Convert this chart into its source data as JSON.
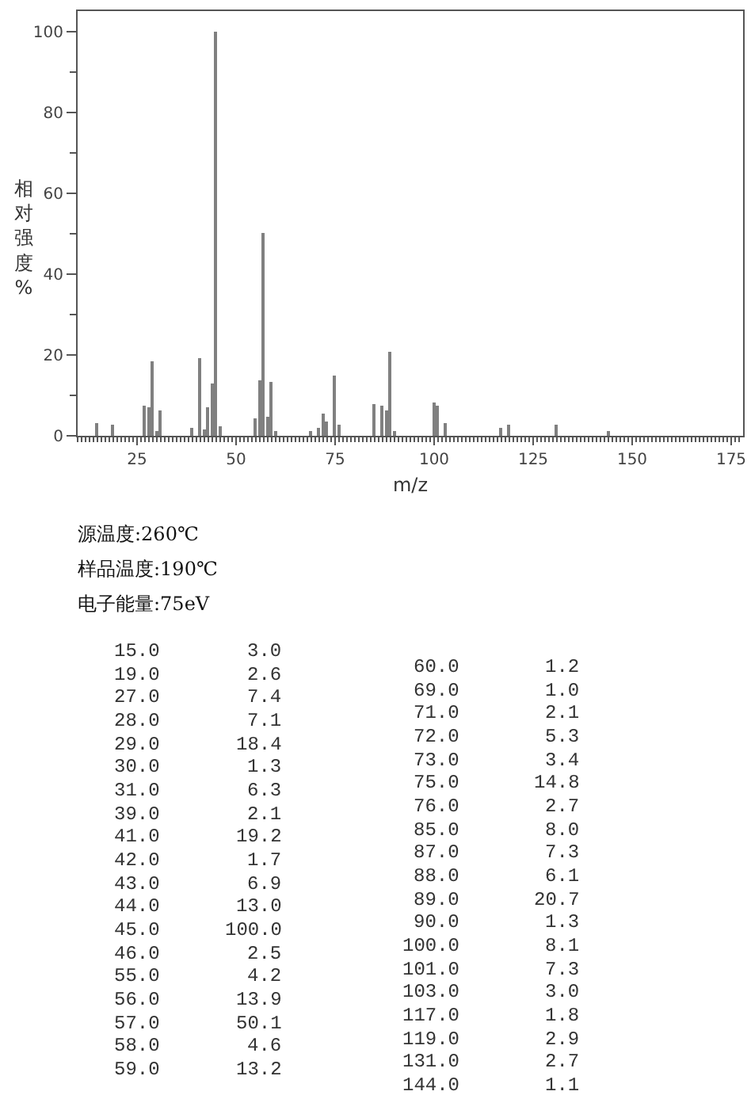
{
  "chart_data": [
    {
      "type": "bar",
      "xlabel": "m/z",
      "ylabel": "相对强度%",
      "x": [
        15,
        19,
        27,
        28,
        29,
        30,
        31,
        39,
        41,
        42,
        43,
        44,
        45,
        46,
        55,
        56,
        57,
        58,
        59,
        60,
        69,
        71,
        72,
        73,
        75,
        76,
        85,
        87,
        88,
        89,
        90,
        100,
        101,
        103,
        117,
        119,
        131,
        144
      ],
      "values": [
        3.0,
        2.6,
        7.4,
        7.1,
        18.4,
        1.3,
        6.3,
        2.1,
        19.2,
        1.7,
        6.9,
        13.0,
        100.0,
        2.5,
        4.2,
        13.9,
        50.1,
        4.6,
        13.2,
        1.2,
        1.0,
        2.1,
        5.3,
        3.4,
        14.8,
        2.7,
        8.0,
        7.3,
        6.1,
        20.7,
        1.3,
        8.1,
        7.3,
        3.0,
        1.8,
        2.9,
        2.7,
        1.1
      ],
      "color": "#808080",
      "xlim": [
        10,
        178
      ],
      "ylim": [
        0,
        105
      ],
      "xticks": [
        {
          "value": 10,
          "label": null
        },
        {
          "value": 11,
          "label": null
        },
        {
          "value": 12,
          "label": null
        },
        {
          "value": 13,
          "label": null
        },
        {
          "value": 14,
          "label": null
        },
        {
          "value": 15,
          "label": null
        },
        {
          "value": 16,
          "label": null
        },
        {
          "value": 17,
          "label": null
        },
        {
          "value": 18,
          "label": null
        },
        {
          "value": 19,
          "label": null
        },
        {
          "value": 20,
          "label": null
        },
        {
          "value": 21,
          "label": null
        },
        {
          "value": 22,
          "label": null
        },
        {
          "value": 23,
          "label": null
        },
        {
          "value": 24,
          "label": null
        },
        25,
        {
          "value": 26,
          "label": null
        },
        {
          "value": 27,
          "label": null
        },
        {
          "value": 28,
          "label": null
        },
        {
          "value": 29,
          "label": null
        },
        {
          "value": 30,
          "label": null
        },
        {
          "value": 31,
          "label": null
        },
        {
          "value": 32,
          "label": null
        },
        {
          "value": 33,
          "label": null
        },
        {
          "value": 34,
          "label": null
        },
        {
          "value": 35,
          "label": null
        },
        {
          "value": 36,
          "label": null
        },
        {
          "value": 37,
          "label": null
        },
        {
          "value": 38,
          "label": null
        },
        {
          "value": 39,
          "label": null
        },
        {
          "value": 40,
          "label": null
        },
        {
          "value": 41,
          "label": null
        },
        {
          "value": 42,
          "label": null
        },
        {
          "value": 43,
          "label": null
        },
        {
          "value": 44,
          "label": null
        },
        {
          "value": 45,
          "label": null
        },
        {
          "value": 46,
          "label": null
        },
        {
          "value": 47,
          "label": null
        },
        {
          "value": 48,
          "label": null
        },
        {
          "value": 49,
          "label": null
        },
        50,
        {
          "value": 51,
          "label": null
        },
        {
          "value": 52,
          "label": null
        },
        {
          "value": 53,
          "label": null
        },
        {
          "value": 54,
          "label": null
        },
        {
          "value": 55,
          "label": null
        },
        {
          "value": 56,
          "label": null
        },
        {
          "value": 57,
          "label": null
        },
        {
          "value": 58,
          "label": null
        },
        {
          "value": 59,
          "label": null
        },
        {
          "value": 60,
          "label": null
        },
        {
          "value": 61,
          "label": null
        },
        {
          "value": 62,
          "label": null
        },
        {
          "value": 63,
          "label": null
        },
        {
          "value": 64,
          "label": null
        },
        {
          "value": 65,
          "label": null
        },
        {
          "value": 66,
          "label": null
        },
        {
          "value": 67,
          "label": null
        },
        {
          "value": 68,
          "label": null
        },
        {
          "value": 69,
          "label": null
        },
        {
          "value": 70,
          "label": null
        },
        {
          "value": 71,
          "label": null
        },
        {
          "value": 72,
          "label": null
        },
        {
          "value": 73,
          "label": null
        },
        {
          "value": 74,
          "label": null
        },
        75,
        {
          "value": 76,
          "label": null
        },
        {
          "value": 77,
          "label": null
        },
        {
          "value": 78,
          "label": null
        },
        {
          "value": 79,
          "label": null
        },
        {
          "value": 80,
          "label": null
        },
        {
          "value": 81,
          "label": null
        },
        {
          "value": 82,
          "label": null
        },
        {
          "value": 83,
          "label": null
        },
        {
          "value": 84,
          "label": null
        },
        {
          "value": 85,
          "label": null
        },
        {
          "value": 86,
          "label": null
        },
        {
          "value": 87,
          "label": null
        },
        {
          "value": 88,
          "label": null
        },
        {
          "value": 89,
          "label": null
        },
        {
          "value": 90,
          "label": null
        },
        {
          "value": 91,
          "label": null
        },
        {
          "value": 92,
          "label": null
        },
        {
          "value": 93,
          "label": null
        },
        {
          "value": 94,
          "label": null
        },
        {
          "value": 95,
          "label": null
        },
        {
          "value": 96,
          "label": null
        },
        {
          "value": 97,
          "label": null
        },
        {
          "value": 98,
          "label": null
        },
        {
          "value": 99,
          "label": null
        },
        100,
        {
          "value": 101,
          "label": null
        },
        {
          "value": 102,
          "label": null
        },
        {
          "value": 103,
          "label": null
        },
        {
          "value": 104,
          "label": null
        },
        {
          "value": 105,
          "label": null
        },
        {
          "value": 106,
          "label": null
        },
        {
          "value": 107,
          "label": null
        },
        {
          "value": 108,
          "label": null
        },
        {
          "value": 109,
          "label": null
        },
        {
          "value": 110,
          "label": null
        },
        {
          "value": 111,
          "label": null
        },
        {
          "value": 112,
          "label": null
        },
        {
          "value": 113,
          "label": null
        },
        {
          "value": 114,
          "label": null
        },
        {
          "value": 115,
          "label": null
        },
        {
          "value": 116,
          "label": null
        },
        {
          "value": 117,
          "label": null
        },
        {
          "value": 118,
          "label": null
        },
        {
          "value": 119,
          "label": null
        },
        {
          "value": 120,
          "label": null
        },
        {
          "value": 121,
          "label": null
        },
        {
          "value": 122,
          "label": null
        },
        {
          "value": 123,
          "label": null
        },
        {
          "value": 124,
          "label": null
        },
        125,
        {
          "value": 126,
          "label": null
        },
        {
          "value": 127,
          "label": null
        },
        {
          "value": 128,
          "label": null
        },
        {
          "value": 129,
          "label": null
        },
        {
          "value": 130,
          "label": null
        },
        {
          "value": 131,
          "label": null
        },
        {
          "value": 132,
          "label": null
        },
        {
          "value": 133,
          "label": null
        },
        {
          "value": 134,
          "label": null
        },
        {
          "value": 135,
          "label": null
        },
        {
          "value": 136,
          "label": null
        },
        {
          "value": 137,
          "label": null
        },
        {
          "value": 138,
          "label": null
        },
        {
          "value": 139,
          "label": null
        },
        {
          "value": 140,
          "label": null
        },
        {
          "value": 141,
          "label": null
        },
        {
          "value": 142,
          "label": null
        },
        {
          "value": 143,
          "label": null
        },
        {
          "value": 144,
          "label": null
        },
        {
          "value": 145,
          "label": null
        },
        {
          "value": 146,
          "label": null
        },
        {
          "value": 147,
          "label": null
        },
        {
          "value": 148,
          "label": null
        },
        {
          "value": 149,
          "label": null
        },
        150,
        {
          "value": 151,
          "label": null
        },
        {
          "value": 152,
          "label": null
        },
        {
          "value": 153,
          "label": null
        },
        {
          "value": 154,
          "label": null
        },
        {
          "value": 155,
          "label": null
        },
        {
          "value": 156,
          "label": null
        },
        {
          "value": 157,
          "label": null
        },
        {
          "value": 158,
          "label": null
        },
        {
          "value": 159,
          "label": null
        },
        {
          "value": 160,
          "label": null
        },
        {
          "value": 161,
          "label": null
        },
        {
          "value": 162,
          "label": null
        },
        {
          "value": 163,
          "label": null
        },
        {
          "value": 164,
          "label": null
        },
        {
          "value": 165,
          "label": null
        },
        {
          "value": 166,
          "label": null
        },
        {
          "value": 167,
          "label": null
        },
        {
          "value": 168,
          "label": null
        },
        {
          "value": 169,
          "label": null
        },
        {
          "value": 170,
          "label": null
        },
        {
          "value": 171,
          "label": null
        },
        {
          "value": 172,
          "label": null
        },
        {
          "value": 173,
          "label": null
        },
        {
          "value": 174,
          "label": null
        },
        175,
        {
          "value": 176,
          "label": null
        },
        {
          "value": 177,
          "label": null
        }
      ],
      "yticks": [
        0,
        {
          "value": 10,
          "label": null
        },
        20,
        {
          "value": 30,
          "label": null
        },
        40,
        {
          "value": 50,
          "label": null
        },
        60,
        {
          "value": 70,
          "label": null
        },
        80,
        {
          "value": 90,
          "label": null
        },
        100
      ],
      "annotations": [
        "源温度:260℃",
        "样品温度:190℃",
        "电子能量:75eV"
      ]
    },
    {
      "type": "other",
      "annotations": [
        "15.0",
        "3.0",
        "19.0",
        "2.6",
        "27.0",
        "7.4",
        "28.0",
        "7.1",
        "29.0",
        "18.4",
        "30.0",
        "1.3",
        "31.0",
        "6.3",
        "39.0",
        "2.1",
        "41.0",
        "19.2",
        "42.0",
        "1.7",
        "43.0",
        "6.9",
        "44.0",
        "13.0",
        "45.0",
        "100.0",
        "46.0",
        "2.5",
        "55.0",
        "4.2",
        "56.0",
        "13.9",
        "57.0",
        "50.1",
        "58.0",
        "4.6",
        "59.0",
        "13.2",
        "60.0",
        "1.2",
        "69.0",
        "1.0",
        "71.0",
        "2.1",
        "72.0",
        "5.3",
        "73.0",
        "3.4",
        "75.0",
        "14.8",
        "76.0",
        "2.7",
        "85.0",
        "8.0",
        "87.0",
        "7.3",
        "88.0",
        "6.1",
        "89.0",
        "20.7",
        "90.0",
        "1.3",
        "100.0",
        "8.1",
        "101.0",
        "7.3",
        "103.0",
        "3.0",
        "117.0",
        "1.8",
        "119.0",
        "2.9",
        "131.0",
        "2.7",
        "144.0",
        "1.1"
      ]
    }
  ]
}
